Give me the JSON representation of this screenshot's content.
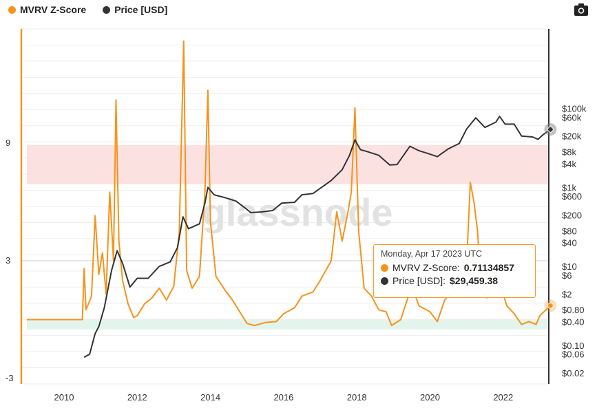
{
  "legend": {
    "mvrv": {
      "label": "MVRV Z-Score",
      "color": "#f7931a"
    },
    "price": {
      "label": "Price [USD]",
      "color": "#333333"
    }
  },
  "toolbar": {
    "camera_icon": "camera-icon"
  },
  "tooltip": {
    "date": "Monday, Apr 17 2023 UTC",
    "mvrv_label": "MVRV Z-Score:",
    "mvrv_value": "0.71134857",
    "price_label": "Price [USD]:",
    "price_value": "$29,459.38"
  },
  "watermark": "glassnode",
  "chart_data": {
    "type": "line",
    "x_ticks": [
      "2010",
      "2012",
      "2014",
      "2016",
      "2018",
      "2020",
      "2022"
    ],
    "y_left_ticks": [
      "9",
      "3",
      "-3"
    ],
    "y_right_ticks": [
      "$100k",
      "$60k",
      "$20k",
      "$8k",
      "$4k",
      "$1k",
      "$600",
      "$200",
      "$80",
      "$40",
      "$10",
      "$6",
      "$2",
      "$0.80",
      "$0.40",
      "$0.10",
      "$0.06",
      "$0.02"
    ],
    "bands": {
      "red_zone": [
        6.9,
        8.9
      ],
      "green_zone": [
        -0.5,
        0.0
      ]
    },
    "series": [
      {
        "name": "MVRV Z-Score",
        "axis": "left",
        "color": "#f7931a",
        "points": [
          [
            2009.0,
            0
          ],
          [
            2010.5,
            0
          ],
          [
            2010.55,
            2.6
          ],
          [
            2010.6,
            0.5
          ],
          [
            2010.75,
            1.2
          ],
          [
            2010.85,
            5.3
          ],
          [
            2010.95,
            2.3
          ],
          [
            2011.05,
            3.4
          ],
          [
            2011.15,
            1.3
          ],
          [
            2011.25,
            6.5
          ],
          [
            2011.35,
            3.0
          ],
          [
            2011.42,
            11.2
          ],
          [
            2011.5,
            4.0
          ],
          [
            2011.6,
            2.0
          ],
          [
            2011.75,
            0.8
          ],
          [
            2011.9,
            0.1
          ],
          [
            2012.0,
            0.2
          ],
          [
            2012.2,
            0.8
          ],
          [
            2012.4,
            1.1
          ],
          [
            2012.6,
            1.6
          ],
          [
            2012.8,
            1.0
          ],
          [
            2013.0,
            1.7
          ],
          [
            2013.15,
            4.5
          ],
          [
            2013.27,
            14.2
          ],
          [
            2013.35,
            2.5
          ],
          [
            2013.5,
            1.6
          ],
          [
            2013.7,
            2.2
          ],
          [
            2013.85,
            6.5
          ],
          [
            2013.93,
            11.7
          ],
          [
            2014.0,
            5.0
          ],
          [
            2014.15,
            2.2
          ],
          [
            2014.4,
            1.5
          ],
          [
            2014.6,
            1.0
          ],
          [
            2014.8,
            0.4
          ],
          [
            2015.0,
            -0.2
          ],
          [
            2015.2,
            -0.3
          ],
          [
            2015.5,
            -0.15
          ],
          [
            2015.8,
            -0.1
          ],
          [
            2016.0,
            0.3
          ],
          [
            2016.3,
            0.6
          ],
          [
            2016.5,
            1.2
          ],
          [
            2016.8,
            1.4
          ],
          [
            2017.0,
            2.0
          ],
          [
            2017.3,
            3.0
          ],
          [
            2017.45,
            5.5
          ],
          [
            2017.6,
            4.0
          ],
          [
            2017.75,
            5.4
          ],
          [
            2017.85,
            6.5
          ],
          [
            2017.95,
            10.8
          ],
          [
            2018.05,
            4.5
          ],
          [
            2018.2,
            1.6
          ],
          [
            2018.4,
            1.2
          ],
          [
            2018.6,
            0.5
          ],
          [
            2018.8,
            0.4
          ],
          [
            2018.95,
            -0.3
          ],
          [
            2019.2,
            0.0
          ],
          [
            2019.5,
            1.7
          ],
          [
            2019.7,
            0.7
          ],
          [
            2020.0,
            0.4
          ],
          [
            2020.2,
            -0.1
          ],
          [
            2020.4,
            1.0
          ],
          [
            2020.6,
            1.4
          ],
          [
            2020.8,
            1.5
          ],
          [
            2021.0,
            2.8
          ],
          [
            2021.1,
            7.0
          ],
          [
            2021.2,
            6.0
          ],
          [
            2021.3,
            4.5
          ],
          [
            2021.4,
            1.5
          ],
          [
            2021.55,
            1.1
          ],
          [
            2021.8,
            2.4
          ],
          [
            2021.95,
            1.6
          ],
          [
            2022.1,
            0.7
          ],
          [
            2022.3,
            0.3
          ],
          [
            2022.5,
            -0.25
          ],
          [
            2022.7,
            -0.1
          ],
          [
            2022.9,
            -0.25
          ],
          [
            2023.0,
            0.2
          ],
          [
            2023.29,
            0.71
          ]
        ]
      },
      {
        "name": "Price [USD]",
        "axis": "right",
        "color": "#333333",
        "points": [
          [
            2010.55,
            0.05
          ],
          [
            2010.7,
            0.06
          ],
          [
            2010.85,
            0.2
          ],
          [
            2010.95,
            0.3
          ],
          [
            2011.1,
            0.9
          ],
          [
            2011.3,
            8
          ],
          [
            2011.45,
            25
          ],
          [
            2011.6,
            12
          ],
          [
            2011.8,
            3
          ],
          [
            2012.0,
            5
          ],
          [
            2012.3,
            5
          ],
          [
            2012.6,
            10
          ],
          [
            2012.9,
            13
          ],
          [
            2013.1,
            30
          ],
          [
            2013.25,
            180
          ],
          [
            2013.4,
            90
          ],
          [
            2013.7,
            120
          ],
          [
            2013.85,
            400
          ],
          [
            2013.93,
            1000
          ],
          [
            2014.1,
            650
          ],
          [
            2014.4,
            550
          ],
          [
            2014.7,
            450
          ],
          [
            2014.95,
            300
          ],
          [
            2015.1,
            230
          ],
          [
            2015.4,
            240
          ],
          [
            2015.7,
            260
          ],
          [
            2015.95,
            400
          ],
          [
            2016.3,
            420
          ],
          [
            2016.5,
            650
          ],
          [
            2016.8,
            700
          ],
          [
            2017.0,
            950
          ],
          [
            2017.3,
            1500
          ],
          [
            2017.6,
            2800
          ],
          [
            2017.8,
            6500
          ],
          [
            2017.95,
            16000
          ],
          [
            2018.1,
            9000
          ],
          [
            2018.3,
            8000
          ],
          [
            2018.6,
            6500
          ],
          [
            2018.9,
            3700
          ],
          [
            2019.1,
            3800
          ],
          [
            2019.45,
            11000
          ],
          [
            2019.7,
            8500
          ],
          [
            2019.95,
            7200
          ],
          [
            2020.2,
            6000
          ],
          [
            2020.5,
            9500
          ],
          [
            2020.8,
            13000
          ],
          [
            2021.0,
            30000
          ],
          [
            2021.25,
            58000
          ],
          [
            2021.5,
            33000
          ],
          [
            2021.8,
            45000
          ],
          [
            2021.9,
            63000
          ],
          [
            2022.05,
            40000
          ],
          [
            2022.3,
            40000
          ],
          [
            2022.5,
            20000
          ],
          [
            2022.8,
            19000
          ],
          [
            2022.95,
            16500
          ],
          [
            2023.1,
            22000
          ],
          [
            2023.29,
            29459.38
          ]
        ]
      }
    ]
  }
}
